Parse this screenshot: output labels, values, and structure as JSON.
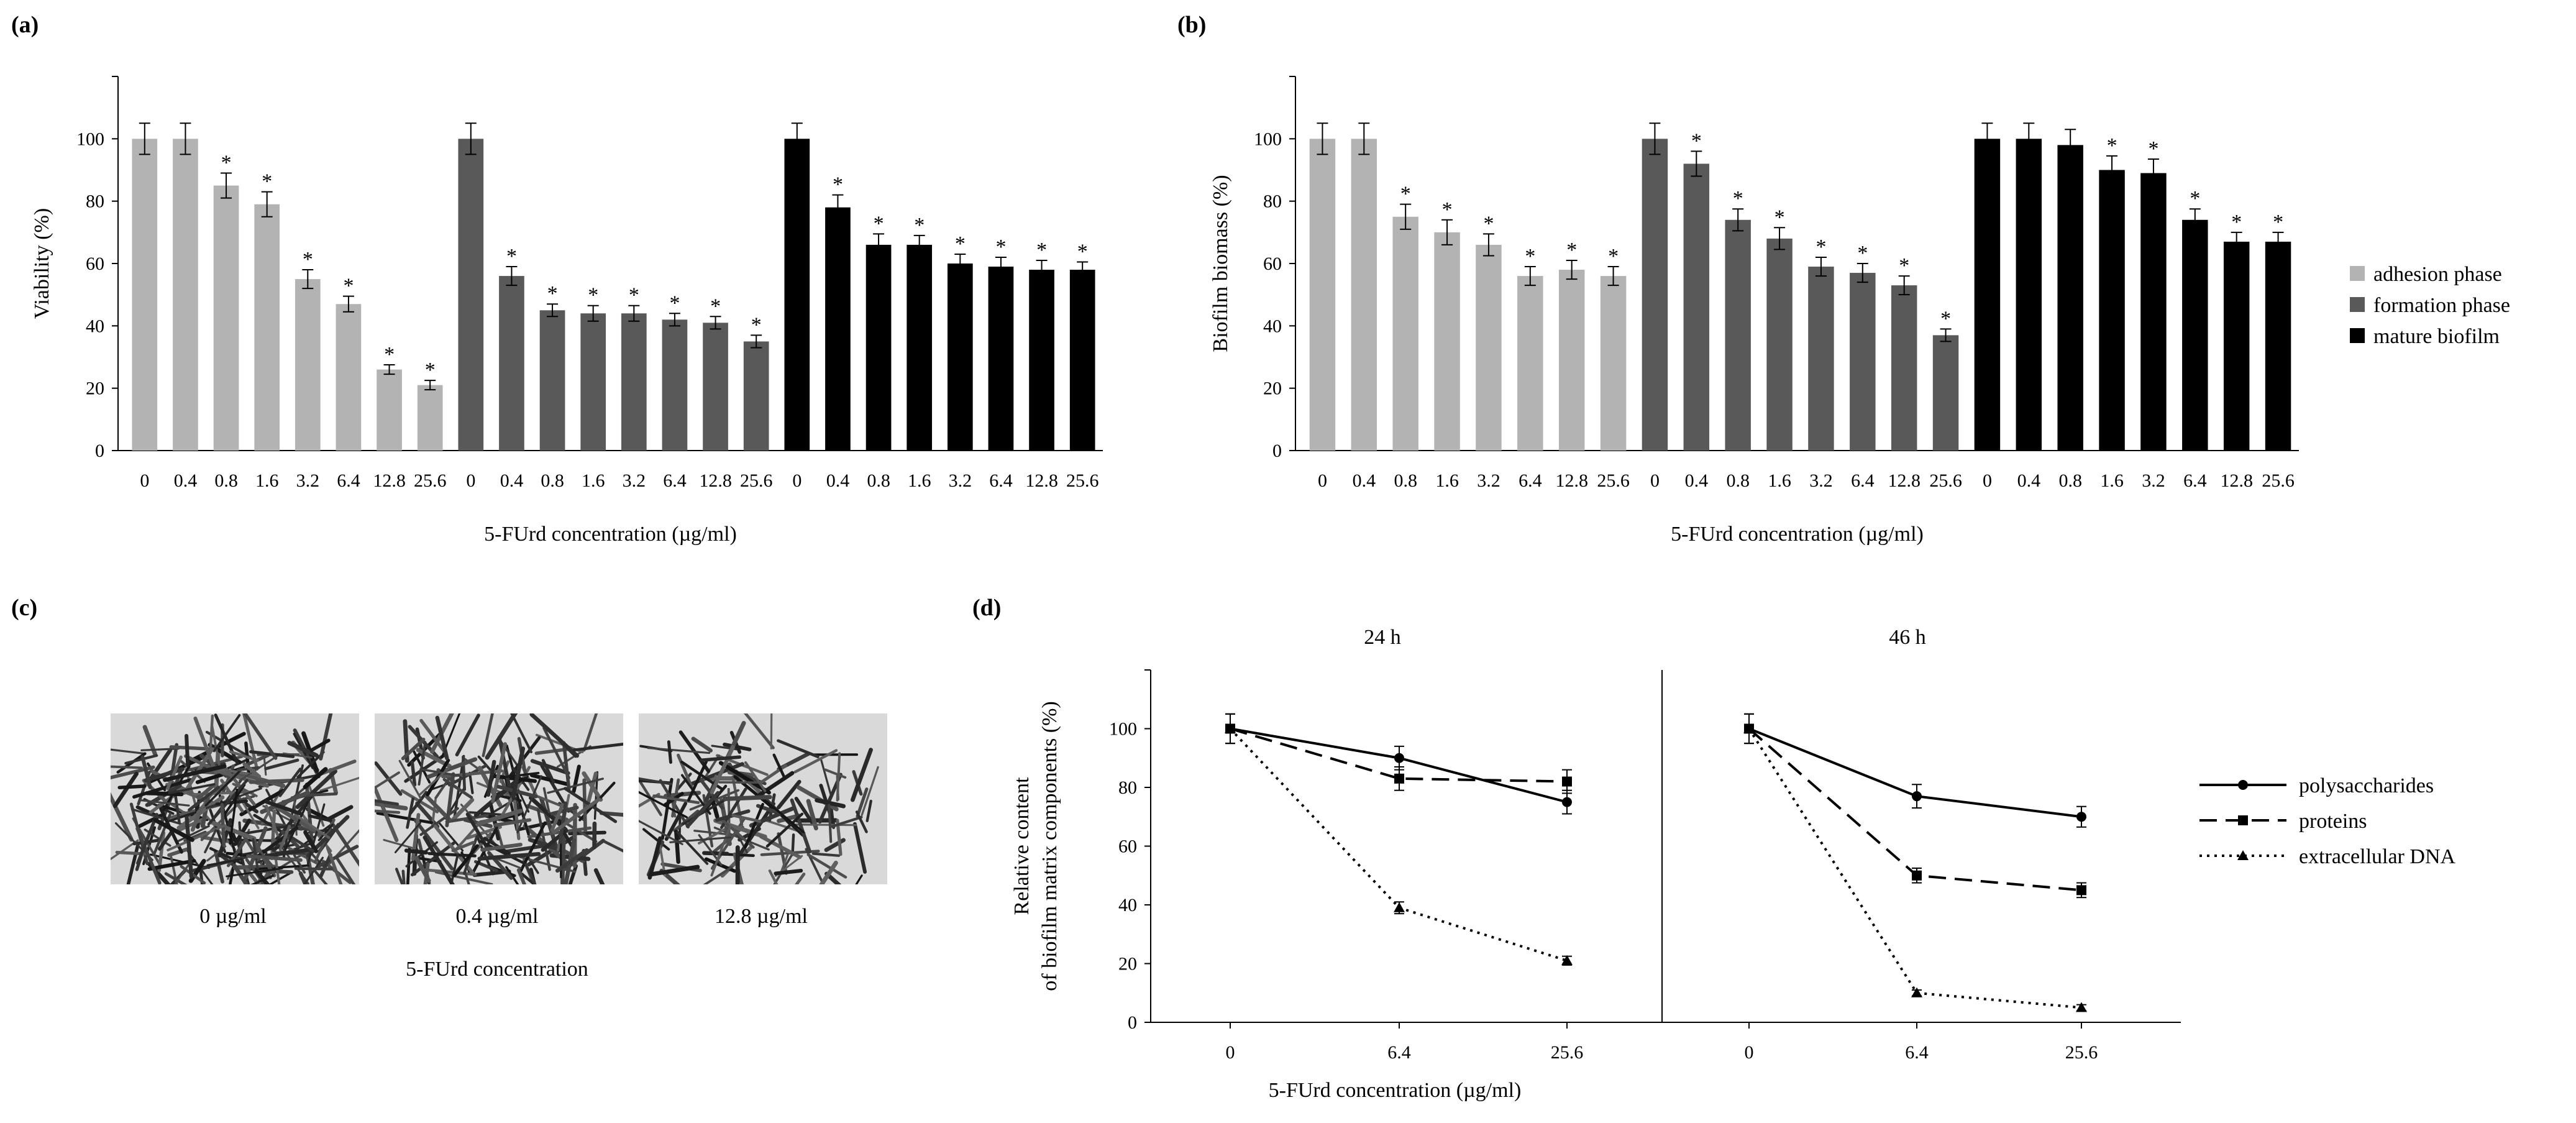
{
  "panels": {
    "a": {
      "label": "(a)"
    },
    "b": {
      "label": "(b)"
    },
    "c": {
      "label": "(c)"
    },
    "d": {
      "label": "(d)"
    }
  },
  "legend_top": {
    "items": [
      {
        "name": "adhesion phase",
        "color": "#b3b3b3"
      },
      {
        "name": "formation phase",
        "color": "#595959"
      },
      {
        "name": "mature biofilm",
        "color": "#000000"
      }
    ]
  },
  "micrographs": {
    "labels": [
      "0 µg/ml",
      "0.4 µg/ml",
      "12.8 µg/ml"
    ],
    "caption": "5-FUrd concentration"
  },
  "chart_data": [
    {
      "id": "a",
      "type": "bar",
      "ylabel": "Viability (%)",
      "xlabel": "5-FUrd concentration (µg/ml)",
      "ylim": [
        0,
        120
      ],
      "yticks": [
        0,
        20,
        40,
        60,
        80,
        100
      ],
      "categories": [
        "0",
        "0.4",
        "0.8",
        "1.6",
        "3.2",
        "6.4",
        "12.8",
        "25.6"
      ],
      "series": [
        {
          "name": "adhesion phase",
          "color": "#b3b3b3",
          "values": [
            100,
            100,
            85,
            79,
            55,
            47,
            26,
            21
          ],
          "errors": [
            5,
            5,
            4,
            4,
            3,
            2.5,
            1.5,
            1.5
          ],
          "significant": [
            false,
            false,
            true,
            true,
            true,
            true,
            true,
            true
          ]
        },
        {
          "name": "formation phase",
          "color": "#595959",
          "values": [
            100,
            56,
            45,
            44,
            44,
            42,
            41,
            35
          ],
          "errors": [
            5,
            3,
            2,
            2.5,
            2.5,
            2,
            2,
            2
          ],
          "significant": [
            false,
            true,
            true,
            true,
            true,
            true,
            true,
            true
          ]
        },
        {
          "name": "mature biofilm",
          "color": "#000000",
          "values": [
            100,
            78,
            66,
            66,
            60,
            59,
            58,
            58
          ],
          "errors": [
            5,
            4,
            3.5,
            3,
            3,
            3,
            3,
            2.5
          ],
          "significant": [
            false,
            true,
            true,
            true,
            true,
            true,
            true,
            true
          ]
        }
      ],
      "significance_marker": "*"
    },
    {
      "id": "b",
      "type": "bar",
      "ylabel": "Biofilm biomass (%)",
      "xlabel": "5-FUrd concentration (µg/ml)",
      "ylim": [
        0,
        120
      ],
      "yticks": [
        0,
        20,
        40,
        60,
        80,
        100
      ],
      "categories": [
        "0",
        "0.4",
        "0.8",
        "1.6",
        "3.2",
        "6.4",
        "12.8",
        "25.6"
      ],
      "series": [
        {
          "name": "adhesion phase",
          "color": "#b3b3b3",
          "values": [
            100,
            100,
            75,
            70,
            66,
            56,
            58,
            56
          ],
          "errors": [
            5,
            5,
            4,
            4,
            3.5,
            3,
            3,
            3
          ],
          "significant": [
            false,
            false,
            true,
            true,
            true,
            true,
            true,
            true
          ]
        },
        {
          "name": "formation phase",
          "color": "#595959",
          "values": [
            100,
            92,
            74,
            68,
            59,
            57,
            53,
            37
          ],
          "errors": [
            5,
            4,
            3.5,
            3.5,
            3,
            3,
            3,
            2
          ],
          "significant": [
            false,
            true,
            true,
            true,
            true,
            true,
            true,
            true
          ]
        },
        {
          "name": "mature biofilm",
          "color": "#000000",
          "values": [
            100,
            100,
            98,
            90,
            89,
            74,
            67,
            67
          ],
          "errors": [
            5,
            5,
            5,
            4.5,
            4.5,
            3.5,
            3,
            3
          ],
          "significant": [
            false,
            false,
            false,
            true,
            true,
            true,
            true,
            true
          ]
        }
      ],
      "significance_marker": "*"
    },
    {
      "id": "d",
      "type": "line",
      "ylabel_lines": [
        "Relative content",
        "of biofilm matrix components (%)"
      ],
      "xlabel": "5-FUrd concentration (µg/ml)",
      "ylim": [
        0,
        120
      ],
      "yticks": [
        0,
        20,
        40,
        60,
        80,
        100
      ],
      "subplots": [
        {
          "title": "24 h",
          "x": [
            "0",
            "6.4",
            "25.6"
          ],
          "series": [
            {
              "name": "polysaccharides",
              "marker": "circle",
              "dash": "solid",
              "values": [
                100,
                90,
                75
              ],
              "errors": [
                5,
                4,
                4
              ]
            },
            {
              "name": "proteins",
              "marker": "square",
              "dash": "dashed",
              "values": [
                100,
                83,
                82
              ],
              "errors": [
                5,
                4,
                4
              ]
            },
            {
              "name": "extracellular DNA",
              "marker": "triangle",
              "dash": "dotted",
              "values": [
                100,
                39,
                21
              ],
              "errors": [
                5,
                2,
                1.5
              ]
            }
          ]
        },
        {
          "title": "46 h",
          "x": [
            "0",
            "6.4",
            "25.6"
          ],
          "series": [
            {
              "name": "polysaccharides",
              "marker": "circle",
              "dash": "solid",
              "values": [
                100,
                77,
                70
              ],
              "errors": [
                5,
                4,
                3.5
              ]
            },
            {
              "name": "proteins",
              "marker": "square",
              "dash": "dashed",
              "values": [
                100,
                50,
                45
              ],
              "errors": [
                5,
                2.5,
                2.5
              ]
            },
            {
              "name": "extracellular DNA",
              "marker": "triangle",
              "dash": "dotted",
              "values": [
                100,
                10,
                5
              ],
              "errors": [
                5,
                1,
                1
              ]
            }
          ]
        }
      ]
    }
  ]
}
